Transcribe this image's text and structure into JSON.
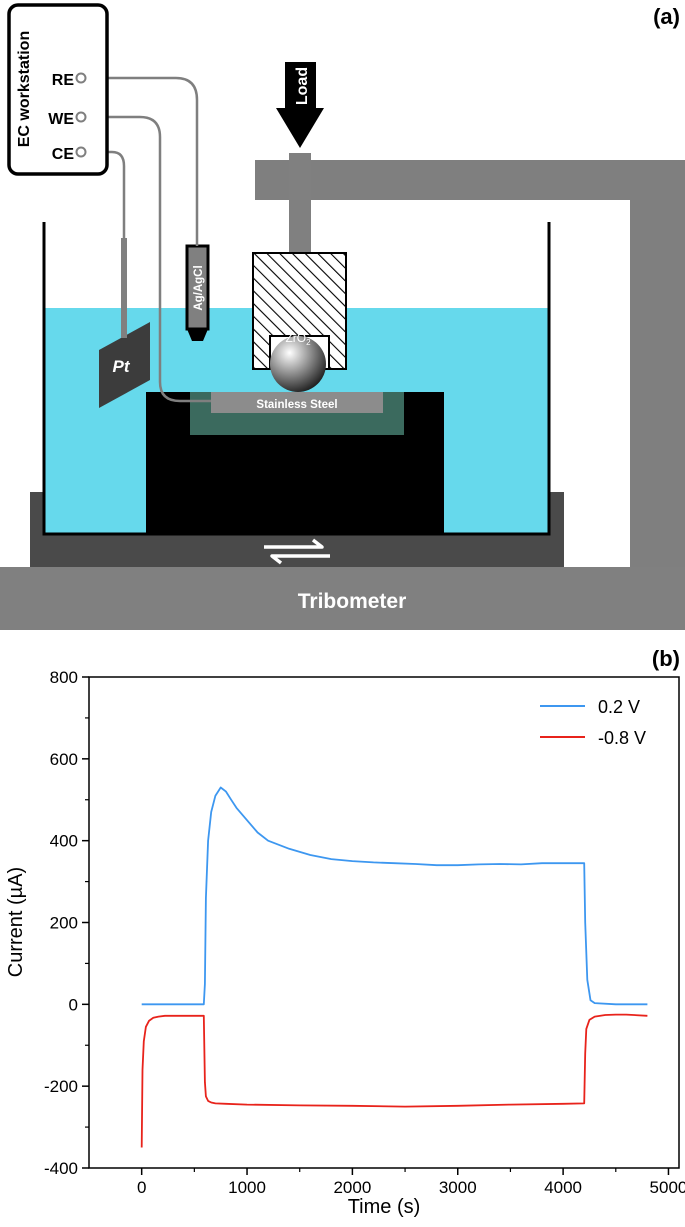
{
  "panel_a": {
    "panel_label": "(a)",
    "workstation": {
      "title": "EC workstation",
      "terminals": [
        "RE",
        "WE",
        "CE"
      ]
    },
    "load_label": "Load",
    "reference_electrode": "Ag/AgCl",
    "counter_electrode": "Pt",
    "ball": {
      "base": "ZrO",
      "subscript": "2"
    },
    "sample": "Stainless Steel",
    "base": "Tribometer",
    "colors": {
      "electrolyte": "#66d9ec",
      "frame": "#7f7f7f",
      "holder": "#000000",
      "sample_mount": "#3b6a5e",
      "sample": "#8c8c8c",
      "stage": "#4a4a4a",
      "base": "#808080"
    },
    "icons": [
      "down-arrow-icon",
      "reciprocating-arrows-icon"
    ]
  },
  "panel_b": {
    "panel_label": "(b)",
    "chart_data": {
      "type": "line",
      "xlabel": "Time (s)",
      "ylabel": "Current (µA)",
      "xlim": [
        -500,
        5100
      ],
      "ylim": [
        -400,
        800
      ],
      "x_ticks": [
        0,
        1000,
        2000,
        3000,
        4000,
        5000
      ],
      "y_ticks": [
        -400,
        -200,
        0,
        200,
        400,
        600,
        800
      ],
      "grid": false,
      "legend_position": "top-right",
      "series": [
        {
          "name": "0.2 V",
          "color": "#3d97f0",
          "x": [
            0,
            590,
            600,
            610,
            630,
            660,
            700,
            750,
            800,
            850,
            900,
            1000,
            1100,
            1200,
            1400,
            1600,
            1800,
            2000,
            2200,
            2400,
            2600,
            2800,
            3000,
            3200,
            3400,
            3600,
            3800,
            4000,
            4150,
            4200,
            4210,
            4230,
            4260,
            4300,
            4500,
            4800
          ],
          "y": [
            0,
            0,
            50,
            260,
            400,
            470,
            510,
            530,
            520,
            500,
            480,
            450,
            420,
            400,
            380,
            365,
            355,
            350,
            347,
            345,
            343,
            340,
            340,
            342,
            343,
            342,
            345,
            345,
            345,
            345,
            200,
            60,
            10,
            3,
            0,
            0
          ]
        },
        {
          "name": "-0.8 V",
          "color": "#e8231b",
          "x": [
            0,
            8,
            20,
            40,
            70,
            110,
            160,
            220,
            300,
            400,
            500,
            590,
            600,
            610,
            630,
            660,
            700,
            800,
            1000,
            1500,
            2000,
            2500,
            3000,
            3500,
            4000,
            4200,
            4210,
            4220,
            4250,
            4300,
            4400,
            4500,
            4600,
            4800
          ],
          "y": [
            -350,
            -160,
            -90,
            -55,
            -40,
            -33,
            -30,
            -28,
            -28,
            -28,
            -28,
            -28,
            -190,
            -225,
            -236,
            -240,
            -242,
            -243,
            -245,
            -247,
            -248,
            -250,
            -248,
            -245,
            -243,
            -242,
            -120,
            -60,
            -38,
            -30,
            -26,
            -25,
            -25,
            -28
          ]
        }
      ]
    }
  }
}
